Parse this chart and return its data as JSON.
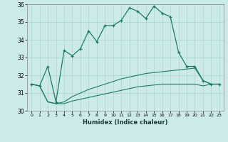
{
  "xlabel": "Humidex (Indice chaleur)",
  "xlim": [
    -0.5,
    23.5
  ],
  "ylim": [
    30,
    36
  ],
  "yticks": [
    30,
    31,
    32,
    33,
    34,
    35,
    36
  ],
  "xticks": [
    0,
    1,
    2,
    3,
    4,
    5,
    6,
    7,
    8,
    9,
    10,
    11,
    12,
    13,
    14,
    15,
    16,
    17,
    18,
    19,
    20,
    21,
    22,
    23
  ],
  "bg_color": "#cceae8",
  "grid_color": "#aad4d0",
  "line_color": "#1a7a6a",
  "line1_x": [
    0,
    1,
    2,
    3,
    4,
    5,
    6,
    7,
    8,
    9,
    10,
    11,
    12,
    13,
    14,
    15,
    16,
    17,
    18,
    19,
    20,
    21,
    22,
    23
  ],
  "line1_y": [
    31.5,
    31.4,
    32.5,
    30.5,
    33.4,
    33.1,
    33.5,
    34.5,
    33.9,
    34.8,
    34.8,
    35.1,
    35.8,
    35.6,
    35.2,
    35.9,
    35.5,
    35.3,
    33.3,
    32.5,
    32.5,
    31.7,
    31.5,
    31.5
  ],
  "line2_x": [
    0,
    1,
    2,
    3,
    4,
    5,
    6,
    7,
    8,
    9,
    10,
    11,
    12,
    13,
    14,
    15,
    16,
    17,
    18,
    19,
    20,
    21,
    22,
    23
  ],
  "line2_y": [
    31.5,
    31.4,
    30.5,
    30.4,
    30.5,
    30.8,
    31.0,
    31.2,
    31.35,
    31.5,
    31.65,
    31.8,
    31.9,
    32.0,
    32.1,
    32.15,
    32.2,
    32.25,
    32.3,
    32.35,
    32.4,
    31.7,
    31.5,
    31.5
  ],
  "line3_x": [
    0,
    1,
    2,
    3,
    4,
    5,
    6,
    7,
    8,
    9,
    10,
    11,
    12,
    13,
    14,
    15,
    16,
    17,
    18,
    19,
    20,
    21,
    22,
    23
  ],
  "line3_y": [
    31.5,
    31.4,
    30.5,
    30.4,
    30.4,
    30.55,
    30.65,
    30.75,
    30.85,
    30.95,
    31.05,
    31.15,
    31.25,
    31.35,
    31.4,
    31.45,
    31.5,
    31.5,
    31.5,
    31.5,
    31.5,
    31.4,
    31.5,
    31.5
  ]
}
